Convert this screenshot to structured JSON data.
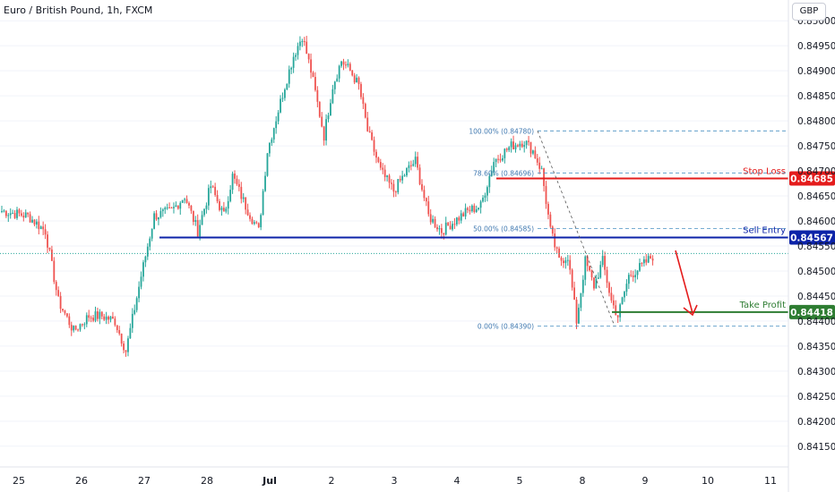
{
  "chart_title": "Euro / British Pound, 1h, FXCM",
  "currency_button": "GBP",
  "chart_data": {
    "type": "candlestick",
    "ylim": [
      0.8413,
      0.8502
    ],
    "price_ticks": [
      "0.85000",
      "0.84950",
      "0.84900",
      "0.84850",
      "0.84800",
      "0.84750",
      "0.84700",
      "0.84650",
      "0.84600",
      "0.84550",
      "0.84500",
      "0.84450",
      "0.84400",
      "0.84350",
      "0.84300",
      "0.84250",
      "0.84200",
      "0.84150"
    ],
    "date_ticks": [
      "25",
      "26",
      "27",
      "28",
      "Jul",
      "2",
      "3",
      "4",
      "5",
      "8",
      "9",
      "10",
      "11"
    ],
    "last_price_level": 0.84535,
    "levels": [
      {
        "name": "Stop Loss",
        "value": "0.84685",
        "price": 0.84685,
        "color": "#e41c1c"
      },
      {
        "name": "Sell Entry",
        "value": "0.84567",
        "price": 0.84567,
        "color": "#0c23a8"
      },
      {
        "name": "Take Profit",
        "value": "0.84418",
        "price": 0.84418,
        "color": "#2e7d32"
      }
    ],
    "fibonacci": [
      {
        "label": "100.00% (0.84780)",
        "price": 0.8478
      },
      {
        "label": "78.60% (0.84696)",
        "price": 0.84696
      },
      {
        "label": "50.00% (0.84585)",
        "price": 0.84585
      },
      {
        "label": "0.00% (0.84390)",
        "price": 0.8439
      }
    ],
    "up_color": "#26a69a",
    "down_color": "#ef5350",
    "arrow_color": "#e41c1c",
    "path_keypoints": [
      [
        0,
        0.8462
      ],
      [
        12,
        0.8461
      ],
      [
        20,
        0.8458
      ],
      [
        26,
        0.8444
      ],
      [
        33,
        0.8438
      ],
      [
        40,
        0.8441
      ],
      [
        46,
        0.8441
      ],
      [
        52,
        0.844
      ],
      [
        57,
        0.8434
      ],
      [
        64,
        0.8449
      ],
      [
        70,
        0.8461
      ],
      [
        78,
        0.8462
      ],
      [
        84,
        0.8465
      ],
      [
        90,
        0.8458
      ],
      [
        96,
        0.8467
      ],
      [
        102,
        0.8461
      ],
      [
        106,
        0.8469
      ],
      [
        112,
        0.8463
      ],
      [
        118,
        0.8458
      ],
      [
        122,
        0.8474
      ],
      [
        130,
        0.8487
      ],
      [
        134,
        0.8493
      ],
      [
        138,
        0.8497
      ],
      [
        142,
        0.849
      ],
      [
        148,
        0.8477
      ],
      [
        152,
        0.8487
      ],
      [
        156,
        0.8492
      ],
      [
        160,
        0.849
      ],
      [
        164,
        0.8487
      ],
      [
        168,
        0.8478
      ],
      [
        174,
        0.847
      ],
      [
        180,
        0.8466
      ],
      [
        186,
        0.847
      ],
      [
        190,
        0.8472
      ],
      [
        196,
        0.8461
      ],
      [
        202,
        0.8458
      ],
      [
        208,
        0.846
      ],
      [
        214,
        0.8462
      ],
      [
        220,
        0.8463
      ],
      [
        226,
        0.8472
      ],
      [
        234,
        0.8475
      ],
      [
        240,
        0.8476
      ],
      [
        244,
        0.8474
      ],
      [
        248,
        0.847
      ],
      [
        252,
        0.8458
      ],
      [
        256,
        0.8452
      ],
      [
        260,
        0.8453
      ],
      [
        264,
        0.844
      ],
      [
        268,
        0.8452
      ],
      [
        272,
        0.8447
      ],
      [
        276,
        0.8452
      ],
      [
        280,
        0.8444
      ],
      [
        283,
        0.8441
      ],
      [
        288,
        0.8449
      ],
      [
        294,
        0.8451
      ],
      [
        299,
        0.8453
      ]
    ]
  }
}
